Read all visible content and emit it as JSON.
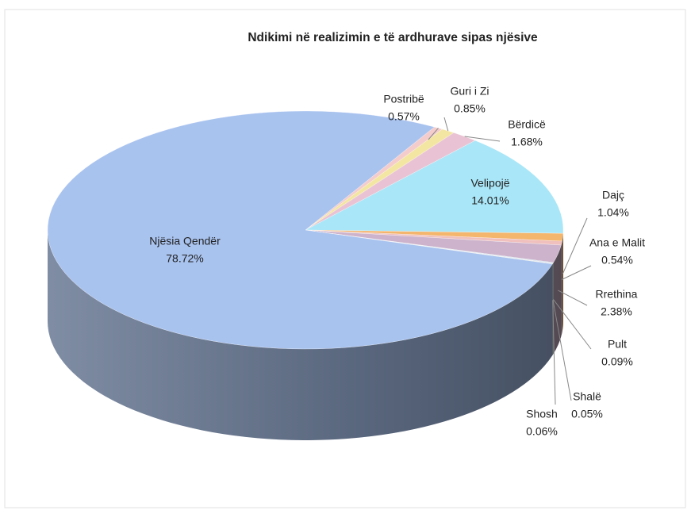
{
  "chart_data": {
    "type": "pie",
    "title": "Ndikimi në realizimin e të ardhurave  sipas njësive",
    "categories": [
      "Postribë",
      "Guri i Zi",
      "Bërdicë",
      "Velipojë",
      "Dajç",
      "Ana e Malit",
      "Rrethina",
      "Pult",
      "Shalë",
      "Shosh",
      "Njësia Qendër"
    ],
    "values": [
      0.57,
      0.85,
      1.68,
      14.01,
      1.04,
      0.54,
      2.38,
      0.09,
      0.05,
      0.06,
      78.72
    ],
    "value_labels": [
      "0.57%",
      "0.85%",
      "1.68%",
      "14.01%",
      "1.04%",
      "0.54%",
      "2.38%",
      "0.09%",
      "0.05%",
      "0.06%",
      "78.72%"
    ],
    "colors": [
      "#f4cccc",
      "#f3e6a2",
      "#e9c3d3",
      "#a9e6f7",
      "#f4b56c",
      "#efc0bd",
      "#cdb4cc",
      "#b9cde0",
      "#d8d0e8",
      "#c8d8c0",
      "#a9c3ef"
    ]
  }
}
